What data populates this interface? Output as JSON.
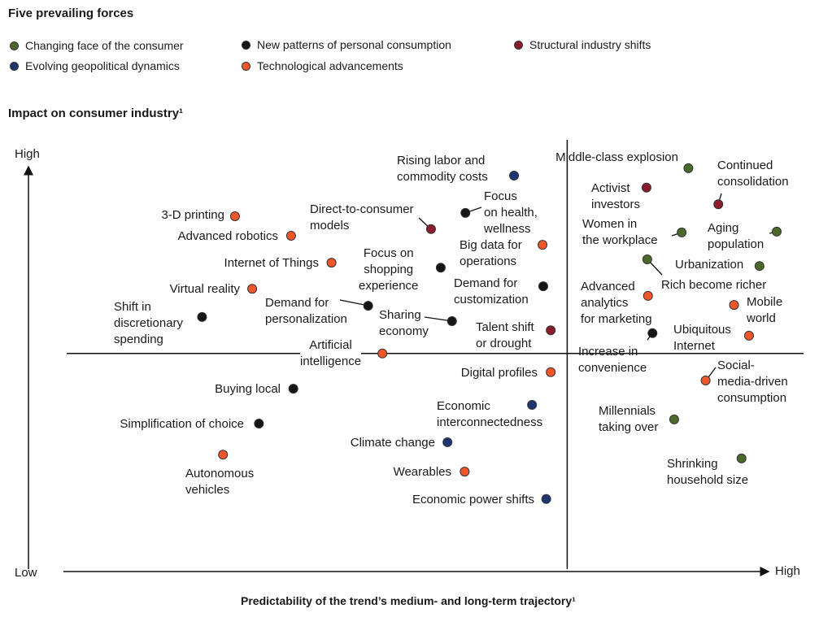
{
  "legend_title": "Five prevailing forces",
  "legend": [
    {
      "key": "consumer",
      "label": "Changing face of the consumer",
      "color": "#4b6a2a"
    },
    {
      "key": "consumption",
      "label": "New patterns of personal consumption",
      "color": "#151515"
    },
    {
      "key": "structural",
      "label": "Structural industry shifts",
      "color": "#8a1c2c"
    },
    {
      "key": "geopolitical",
      "label": "Evolving geopolitical dynamics",
      "color": "#1f3572"
    },
    {
      "key": "tech",
      "label": "Technological advancements",
      "color": "#f0562a"
    }
  ],
  "chart_data": {
    "type": "scatter",
    "title": "Impact on consumer industry¹",
    "ylabel": "Impact on consumer industry¹",
    "xlabel": "Predictability of the trend’s medium- and long-term trajectory¹",
    "x_low": "Low",
    "x_high": "High",
    "y_high": "High",
    "xlim": [
      0,
      100
    ],
    "ylim": [
      0,
      100
    ],
    "quadrant_divider": {
      "x": 72,
      "y": 52
    },
    "points": [
      {
        "label": "3-D printing",
        "x": 27.6,
        "y": 85.1,
        "cat": "tech"
      },
      {
        "label": "Advanced robotics",
        "x": 35.1,
        "y": 80.4,
        "cat": "tech"
      },
      {
        "label": "Internet of Things",
        "x": 40.5,
        "y": 73.9,
        "cat": "tech"
      },
      {
        "label": "Virtual reality",
        "x": 29.9,
        "y": 67.6,
        "cat": "tech"
      },
      {
        "label": "Shift in\ndiscretionary\nspending",
        "x": 23.2,
        "y": 60.8,
        "cat": "consumption"
      },
      {
        "label": "Direct-to-consumer\nmodels",
        "x": 53.8,
        "y": 82.0,
        "cat": "structural"
      },
      {
        "label": "Focus\non health,\nwellness",
        "x": 58.4,
        "y": 85.9,
        "cat": "consumption"
      },
      {
        "label": "Rising labor and\ncommodity costs",
        "x": 64.9,
        "y": 94.9,
        "cat": "geopolitical"
      },
      {
        "label": "Big data for\noperations",
        "x": 68.7,
        "y": 78.2,
        "cat": "tech"
      },
      {
        "label": "Focus on\nshopping\nexperience",
        "x": 55.1,
        "y": 72.7,
        "cat": "consumption"
      },
      {
        "label": "Demand for\ncustomization",
        "x": 68.8,
        "y": 68.2,
        "cat": "consumption"
      },
      {
        "label": "Demand for\npersonalization",
        "x": 45.4,
        "y": 63.5,
        "cat": "consumption"
      },
      {
        "label": "Sharing\neconomy",
        "x": 56.6,
        "y": 59.8,
        "cat": "consumption"
      },
      {
        "label": "Talent shift\nor drought",
        "x": 69.8,
        "y": 57.6,
        "cat": "structural"
      },
      {
        "label": "Artificial\nintelligence",
        "x": 47.3,
        "y": 52.0,
        "cat": "tech"
      },
      {
        "label": "Digital profiles",
        "x": 69.8,
        "y": 47.5,
        "cat": "tech"
      },
      {
        "label": "Buying local",
        "x": 35.4,
        "y": 43.5,
        "cat": "consumption"
      },
      {
        "label": "Economic\ninterconnectedness",
        "x": 67.3,
        "y": 39.6,
        "cat": "geopolitical"
      },
      {
        "label": "Simplification of choice",
        "x": 30.8,
        "y": 35.1,
        "cat": "consumption"
      },
      {
        "label": "Climate change",
        "x": 56.0,
        "y": 30.6,
        "cat": "geopolitical"
      },
      {
        "label": "Autonomous\nvehicles",
        "x": 26.0,
        "y": 27.6,
        "cat": "tech"
      },
      {
        "label": "Wearables",
        "x": 58.3,
        "y": 23.5,
        "cat": "tech"
      },
      {
        "label": "Economic power shifts",
        "x": 69.2,
        "y": 16.9,
        "cat": "geopolitical"
      },
      {
        "label": "Middle-class explosion",
        "x": 88.2,
        "y": 96.7,
        "cat": "consumer"
      },
      {
        "label": "Activist\ninvestors",
        "x": 82.6,
        "y": 92.0,
        "cat": "structural"
      },
      {
        "label": "Continued\nconsolidation",
        "x": 92.2,
        "y": 88.0,
        "cat": "structural"
      },
      {
        "label": "Women in\nthe workplace",
        "x": 87.3,
        "y": 81.2,
        "cat": "consumer"
      },
      {
        "label": "Aging\npopulation",
        "x": 100,
        "y": 81.4,
        "cat": "consumer"
      },
      {
        "label": "Urbanization",
        "x": 97.7,
        "y": 73.1,
        "cat": "consumer"
      },
      {
        "label": "Rich become richer",
        "x": 82.7,
        "y": 74.7,
        "cat": "consumer"
      },
      {
        "label": "Advanced\nanalytics\nfor marketing",
        "x": 82.8,
        "y": 65.9,
        "cat": "tech"
      },
      {
        "label": "Mobile\nworld",
        "x": 94.3,
        "y": 63.7,
        "cat": "tech"
      },
      {
        "label": "Increase in\nconvenience",
        "x": 83.4,
        "y": 56.9,
        "cat": "consumption"
      },
      {
        "label": "Ubiquitous\nInternet",
        "x": 96.3,
        "y": 56.3,
        "cat": "tech"
      },
      {
        "label": "Social-\nmedia-driven\nconsumption",
        "x": 90.5,
        "y": 45.5,
        "cat": "tech"
      },
      {
        "label": "Millennials\ntaking over",
        "x": 86.3,
        "y": 36.1,
        "cat": "consumer"
      },
      {
        "label": "Shrinking\nhousehold size",
        "x": 95.3,
        "y": 26.7,
        "cat": "consumer"
      }
    ]
  }
}
